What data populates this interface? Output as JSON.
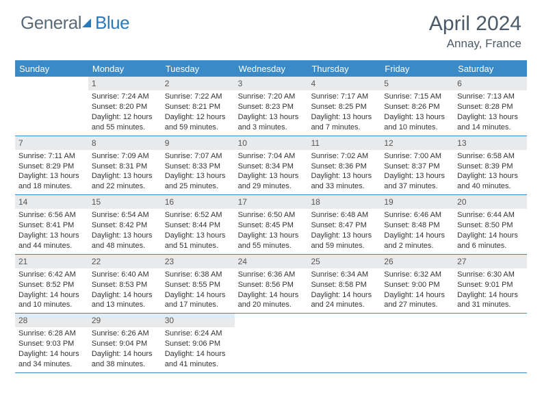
{
  "brand": {
    "part1": "General",
    "part2": "Blue"
  },
  "title": "April 2024",
  "location": "Annay, France",
  "colors": {
    "accent": "#3a8ac8",
    "header_text": "#4a5a68",
    "daynum_bg": "#e9eaec",
    "text": "#333333"
  },
  "weekdays": [
    "Sunday",
    "Monday",
    "Tuesday",
    "Wednesday",
    "Thursday",
    "Friday",
    "Saturday"
  ],
  "weeks": [
    [
      null,
      {
        "n": "1",
        "sunrise": "7:24 AM",
        "sunset": "8:20 PM",
        "daylight": "12 hours and 55 minutes."
      },
      {
        "n": "2",
        "sunrise": "7:22 AM",
        "sunset": "8:21 PM",
        "daylight": "12 hours and 59 minutes."
      },
      {
        "n": "3",
        "sunrise": "7:20 AM",
        "sunset": "8:23 PM",
        "daylight": "13 hours and 3 minutes."
      },
      {
        "n": "4",
        "sunrise": "7:17 AM",
        "sunset": "8:25 PM",
        "daylight": "13 hours and 7 minutes."
      },
      {
        "n": "5",
        "sunrise": "7:15 AM",
        "sunset": "8:26 PM",
        "daylight": "13 hours and 10 minutes."
      },
      {
        "n": "6",
        "sunrise": "7:13 AM",
        "sunset": "8:28 PM",
        "daylight": "13 hours and 14 minutes."
      }
    ],
    [
      {
        "n": "7",
        "sunrise": "7:11 AM",
        "sunset": "8:29 PM",
        "daylight": "13 hours and 18 minutes."
      },
      {
        "n": "8",
        "sunrise": "7:09 AM",
        "sunset": "8:31 PM",
        "daylight": "13 hours and 22 minutes."
      },
      {
        "n": "9",
        "sunrise": "7:07 AM",
        "sunset": "8:33 PM",
        "daylight": "13 hours and 25 minutes."
      },
      {
        "n": "10",
        "sunrise": "7:04 AM",
        "sunset": "8:34 PM",
        "daylight": "13 hours and 29 minutes."
      },
      {
        "n": "11",
        "sunrise": "7:02 AM",
        "sunset": "8:36 PM",
        "daylight": "13 hours and 33 minutes."
      },
      {
        "n": "12",
        "sunrise": "7:00 AM",
        "sunset": "8:37 PM",
        "daylight": "13 hours and 37 minutes."
      },
      {
        "n": "13",
        "sunrise": "6:58 AM",
        "sunset": "8:39 PM",
        "daylight": "13 hours and 40 minutes."
      }
    ],
    [
      {
        "n": "14",
        "sunrise": "6:56 AM",
        "sunset": "8:41 PM",
        "daylight": "13 hours and 44 minutes."
      },
      {
        "n": "15",
        "sunrise": "6:54 AM",
        "sunset": "8:42 PM",
        "daylight": "13 hours and 48 minutes."
      },
      {
        "n": "16",
        "sunrise": "6:52 AM",
        "sunset": "8:44 PM",
        "daylight": "13 hours and 51 minutes."
      },
      {
        "n": "17",
        "sunrise": "6:50 AM",
        "sunset": "8:45 PM",
        "daylight": "13 hours and 55 minutes."
      },
      {
        "n": "18",
        "sunrise": "6:48 AM",
        "sunset": "8:47 PM",
        "daylight": "13 hours and 59 minutes."
      },
      {
        "n": "19",
        "sunrise": "6:46 AM",
        "sunset": "8:48 PM",
        "daylight": "14 hours and 2 minutes."
      },
      {
        "n": "20",
        "sunrise": "6:44 AM",
        "sunset": "8:50 PM",
        "daylight": "14 hours and 6 minutes."
      }
    ],
    [
      {
        "n": "21",
        "sunrise": "6:42 AM",
        "sunset": "8:52 PM",
        "daylight": "14 hours and 10 minutes."
      },
      {
        "n": "22",
        "sunrise": "6:40 AM",
        "sunset": "8:53 PM",
        "daylight": "14 hours and 13 minutes."
      },
      {
        "n": "23",
        "sunrise": "6:38 AM",
        "sunset": "8:55 PM",
        "daylight": "14 hours and 17 minutes."
      },
      {
        "n": "24",
        "sunrise": "6:36 AM",
        "sunset": "8:56 PM",
        "daylight": "14 hours and 20 minutes."
      },
      {
        "n": "25",
        "sunrise": "6:34 AM",
        "sunset": "8:58 PM",
        "daylight": "14 hours and 24 minutes."
      },
      {
        "n": "26",
        "sunrise": "6:32 AM",
        "sunset": "9:00 PM",
        "daylight": "14 hours and 27 minutes."
      },
      {
        "n": "27",
        "sunrise": "6:30 AM",
        "sunset": "9:01 PM",
        "daylight": "14 hours and 31 minutes."
      }
    ],
    [
      {
        "n": "28",
        "sunrise": "6:28 AM",
        "sunset": "9:03 PM",
        "daylight": "14 hours and 34 minutes."
      },
      {
        "n": "29",
        "sunrise": "6:26 AM",
        "sunset": "9:04 PM",
        "daylight": "14 hours and 38 minutes."
      },
      {
        "n": "30",
        "sunrise": "6:24 AM",
        "sunset": "9:06 PM",
        "daylight": "14 hours and 41 minutes."
      },
      null,
      null,
      null,
      null
    ]
  ]
}
